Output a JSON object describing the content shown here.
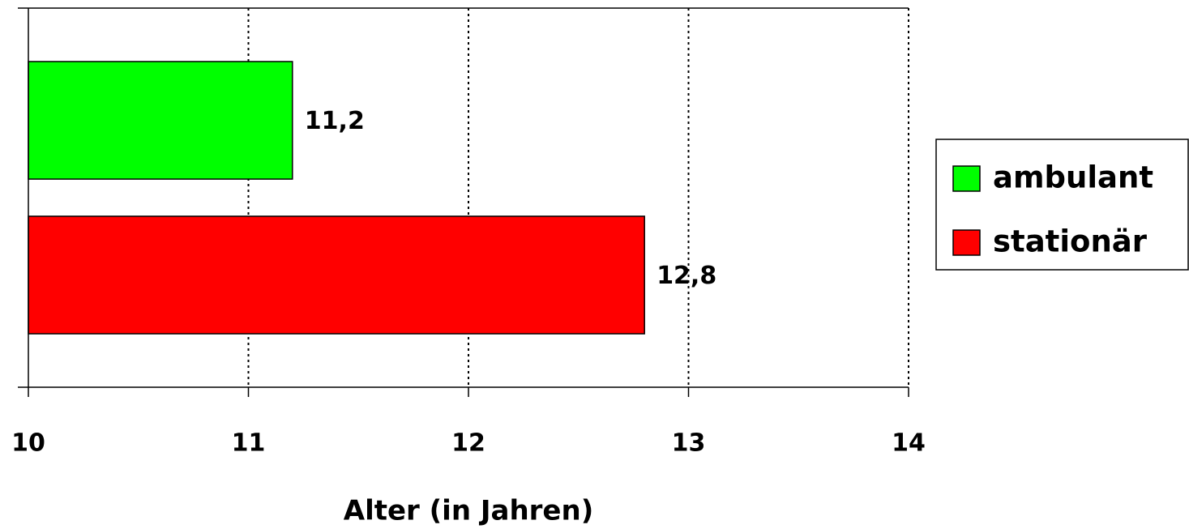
{
  "chart_data": {
    "type": "bar",
    "orientation": "horizontal",
    "x_label": "Alter (in Jahren)",
    "categories": [
      null
    ],
    "series": [
      {
        "name": "ambulant",
        "color": "#00ff00",
        "values": [
          11.2
        ],
        "value_labels": [
          "11,2"
        ]
      },
      {
        "name": "stationär",
        "color": "#ff0000",
        "values": [
          12.8
        ],
        "value_labels": [
          "12,8"
        ]
      }
    ],
    "xlim": [
      10,
      14
    ],
    "xticks": [
      10,
      11,
      12,
      13,
      14
    ],
    "grid": true,
    "legend": "right"
  }
}
